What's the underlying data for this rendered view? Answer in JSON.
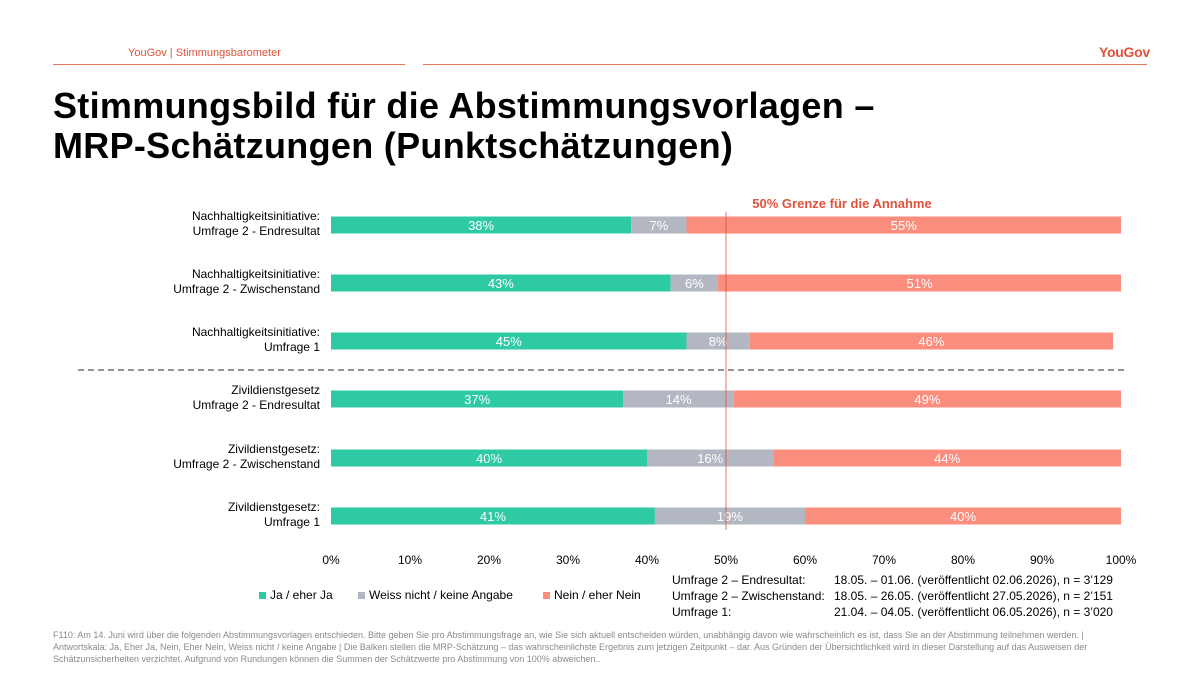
{
  "header": {
    "brand_small": "YouGov | Stimmungsbarometer",
    "logo_text": "YouGov",
    "title_line1": "Stimmungsbild für die Abstimmungsvorlagen –",
    "title_line2": "MRP-Schätzungen (Punktschätzungen)"
  },
  "colors": {
    "ja": "#2ecaa3",
    "weiss": "#b3b7c1",
    "nein": "#fb8d7f",
    "accent": "#e0523c"
  },
  "chart_data": {
    "type": "bar",
    "orientation": "horizontal",
    "stacked": true,
    "categories": [
      [
        "Nachhaltigkeitsinitiative:",
        "Umfrage 2 - Endresultat"
      ],
      [
        "Nachhaltigkeitsinitiative:",
        "Umfrage 2 - Zwischenstand"
      ],
      [
        "Nachhaltigkeitsinitiative:",
        "Umfrage 1"
      ],
      [
        "Zivildienstgesetz",
        "Umfrage 2 - Endresultat"
      ],
      [
        "Zivildienstgesetz:",
        "Umfrage 2 - Zwischenstand"
      ],
      [
        "Zivildienstgesetz:",
        "Umfrage 1"
      ]
    ],
    "series": [
      {
        "name": "Ja / eher Ja",
        "values": [
          38,
          43,
          45,
          37,
          40,
          41
        ]
      },
      {
        "name": "Weiss nicht / keine Angabe",
        "values": [
          7,
          6,
          8,
          14,
          16,
          19
        ]
      },
      {
        "name": "Nein / eher Nein",
        "values": [
          55,
          51,
          46,
          49,
          44,
          40
        ]
      }
    ],
    "xlim": [
      0,
      100
    ],
    "xticks": [
      "0%",
      "10%",
      "20%",
      "30%",
      "40%",
      "50%",
      "60%",
      "70%",
      "80%",
      "90%",
      "100%"
    ],
    "threshold": {
      "value": 50,
      "label": "50% Grenze für die Annahme"
    },
    "legend_position": "bottom-left"
  },
  "surveys": [
    {
      "name": "Umfrage 2 – Endresultat:",
      "dates": "18.05. – 01.06. (veröffentlicht 02.06.2026), n = 3’129"
    },
    {
      "name": "Umfrage 2 – Zwischenstand:",
      "dates": "18.05. – 26.05. (veröffentlicht 27.05.2026), n = 2’151"
    },
    {
      "name": "Umfrage 1:",
      "dates": "21.04. – 04.05. (veröffentlicht 06.05.2026), n = 3’020"
    }
  ],
  "footnote": "F110: Am 14. Juni wird über die folgenden Abstimmungsvorlagen entschieden. Bitte geben Sie pro Abstimmungsfrage an, wie Sie sich aktuell entscheiden würden, unabhängig davon wie wahrscheinlich es ist, dass Sie an der Abstimmung teilnehmen werden. | Antwortskala: Ja, Eher Ja, Nein, Eher Nein, Weiss nicht / keine Angabe | Die Balken stellen die MRP-Schätzung – das wahrscheinlichste Ergebnis zum jetzigen Zeitpunkt – dar. Aus Gründen der Übersichtlichkeit wird in dieser Darstellung auf das Ausweisen der Schätzunsicherheiten verzichtet. Aufgrund von Rundungen können die Summen der Schätzwerte pro Abstimmung von 100% abweichen.."
}
